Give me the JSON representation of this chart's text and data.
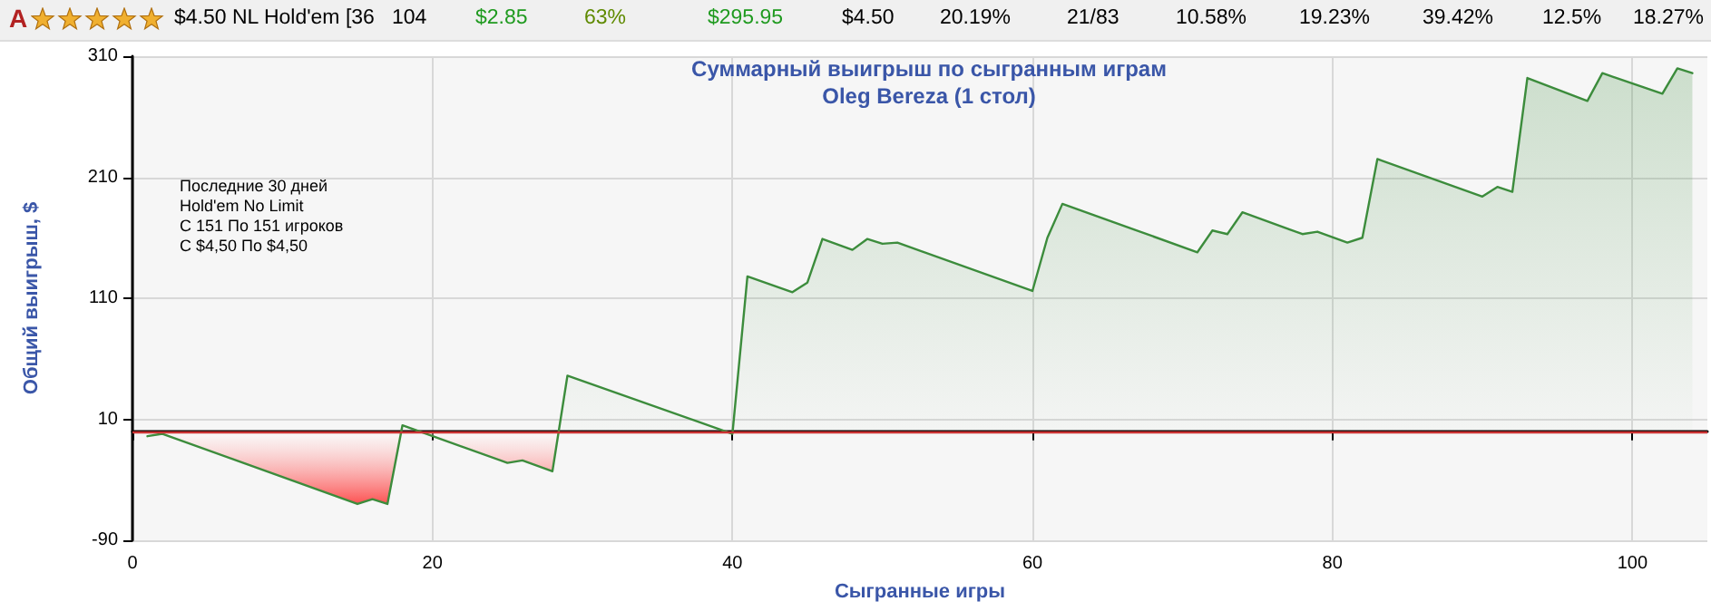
{
  "chart_data": {
    "type": "area",
    "title": "Суммарный выигрыш по сыгранным играм",
    "subtitle": "Oleg Bereza (1 стол)",
    "xlabel": "Сыгранные игры",
    "ylabel": "Общий выигрыш, $",
    "annotations": [
      "Последние 30 дней\nHold'em No Limit\nС 151 По 151 игроков\nС $4,50 По $4,50",
      "A",
      "$4.50 NL Hold'em [36",
      "104",
      "$2.85",
      "63%",
      "$295.95",
      "$4.50",
      "20.19%",
      "21/83",
      "10.58%",
      "19.23%",
      "39.42%",
      "12.5%",
      "18.27%"
    ],
    "x": [
      1,
      2,
      15,
      16,
      17,
      18,
      25,
      26,
      28,
      29,
      40,
      41,
      44,
      45,
      46,
      48,
      49,
      50,
      51,
      60,
      61,
      62,
      71,
      72,
      73,
      74,
      78,
      79,
      81,
      82,
      83,
      90,
      91,
      92,
      93,
      97,
      98,
      102,
      103,
      104
    ],
    "series": [
      {
        "color": "#3c8c3c",
        "values": [
          -4,
          -2,
          -60,
          -56,
          -60,
          5,
          -26,
          -24,
          -33,
          46,
          -2,
          128,
          115,
          123,
          159,
          150,
          159,
          155,
          156,
          116,
          160,
          188,
          148,
          166,
          163,
          181,
          163,
          165,
          156,
          160,
          225,
          194,
          202,
          198,
          292,
          273,
          296,
          279,
          300,
          296
        ]
      }
    ],
    "xlim": [
      0,
      105
    ],
    "xticks": [
      0,
      20,
      40,
      60,
      80,
      100
    ],
    "ylim": [
      -90,
      310
    ],
    "yticks": [
      -90,
      10,
      110,
      210,
      310
    ],
    "ref_lines": [
      {
        "axis": "y",
        "value": 0,
        "color": "#cc3333"
      }
    ],
    "grid": true,
    "marker": "none",
    "line_style": "solid"
  }
}
